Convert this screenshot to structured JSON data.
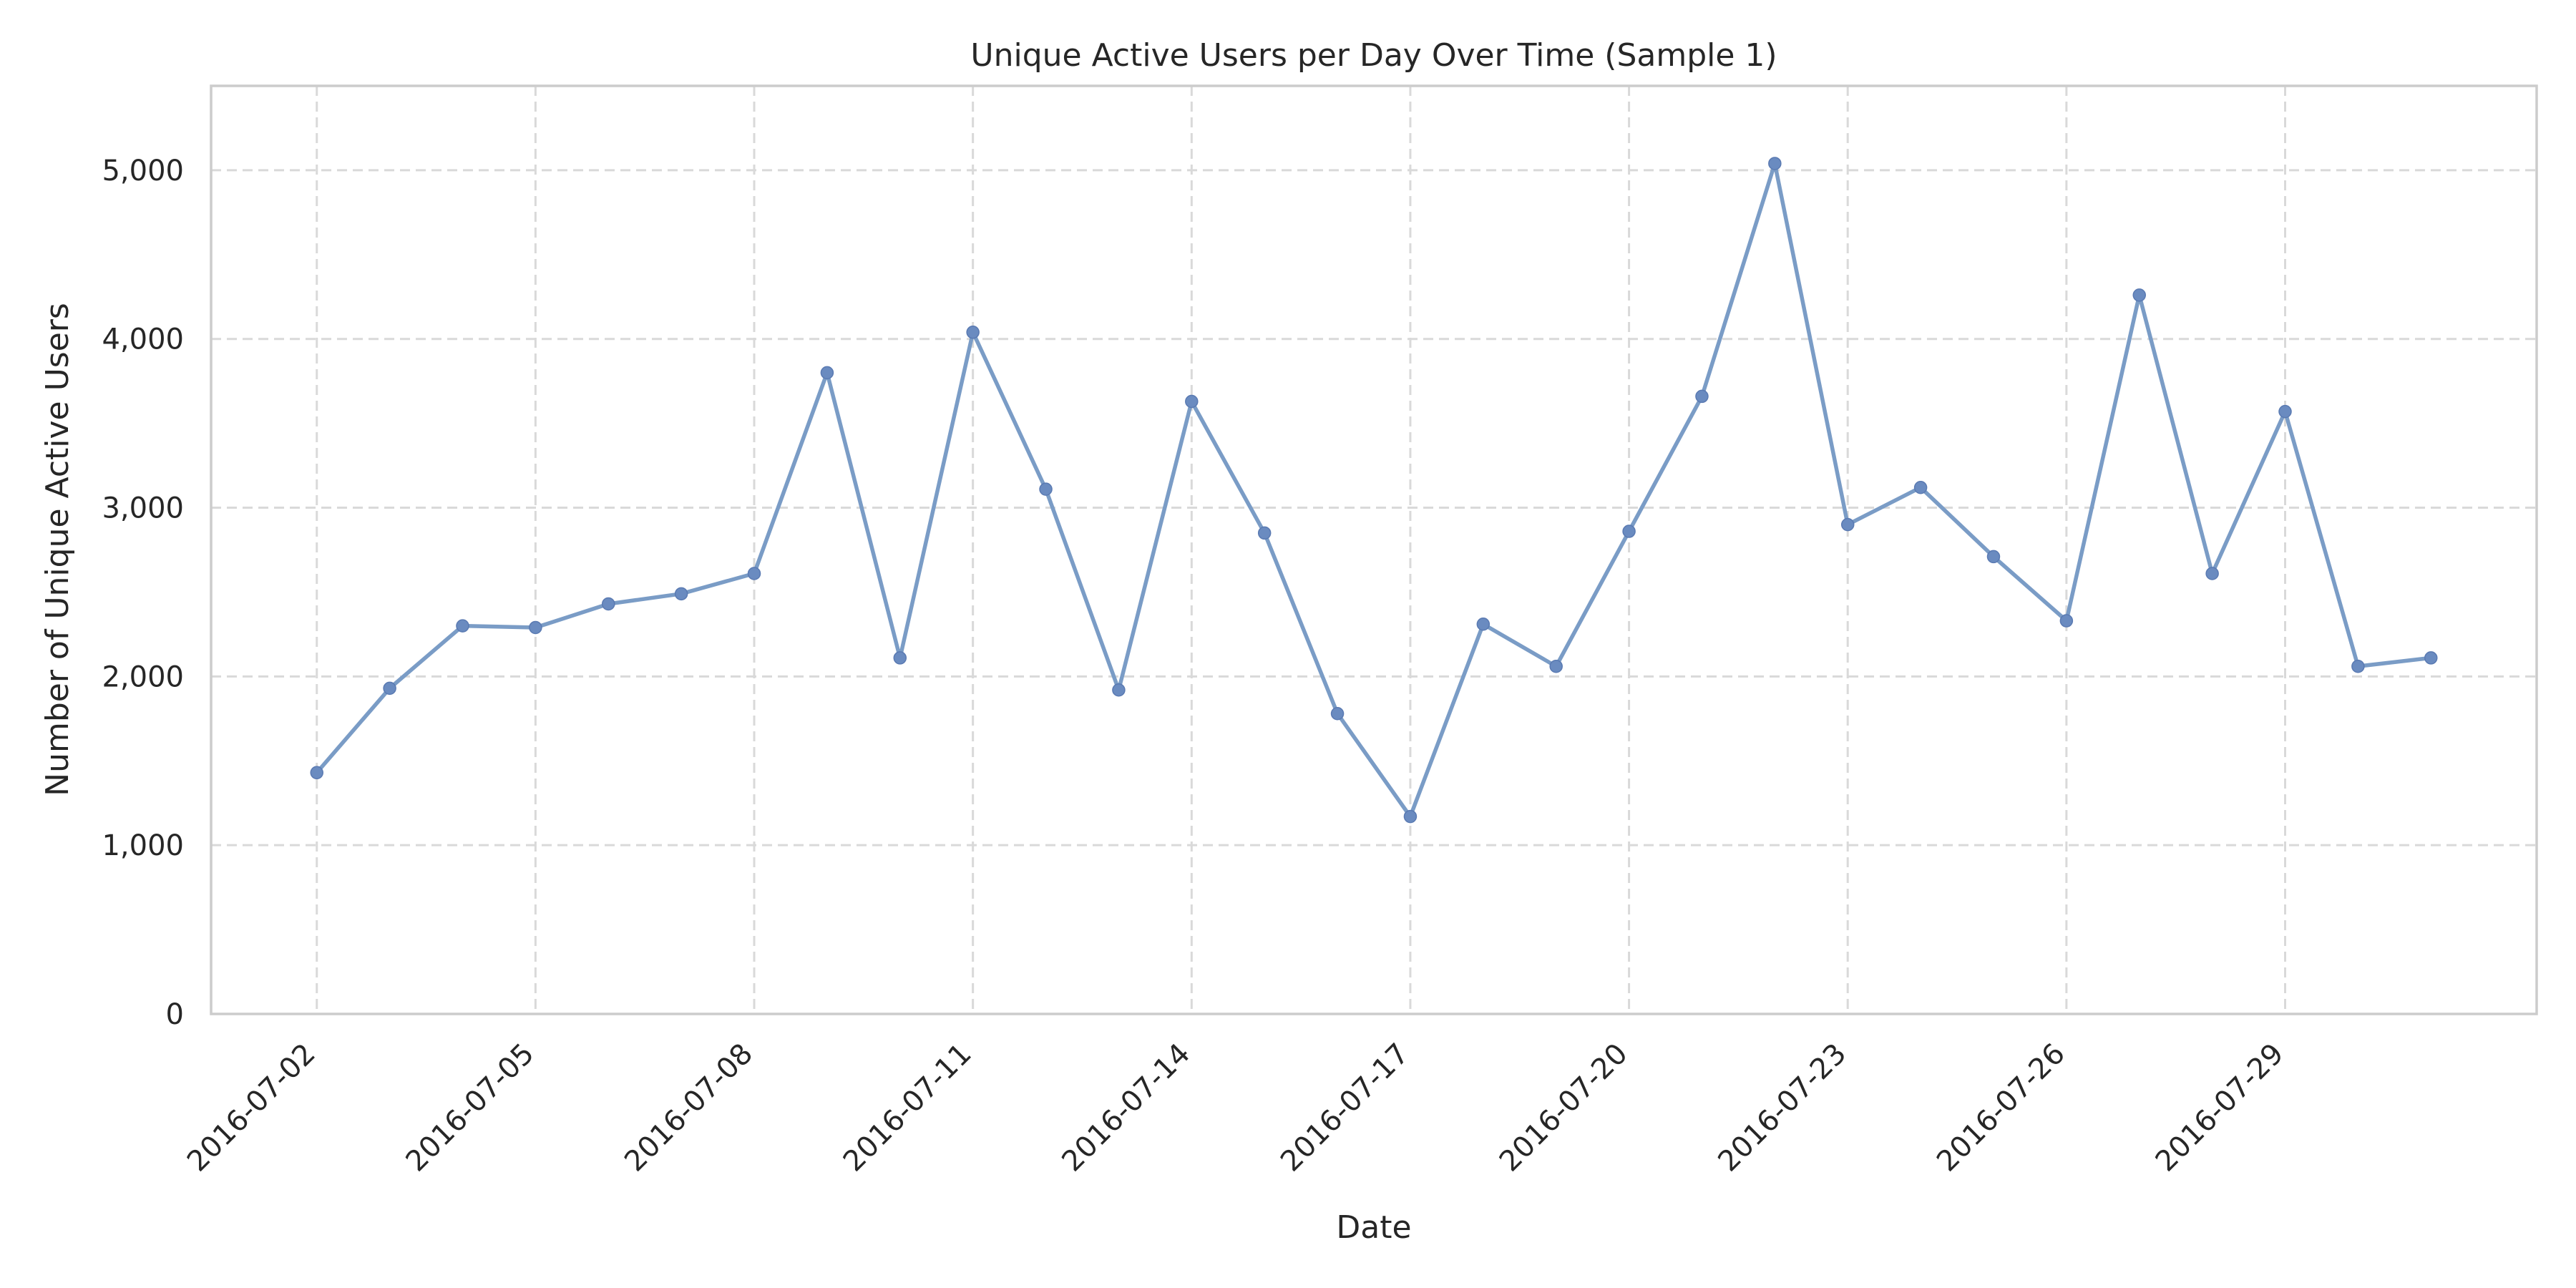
{
  "chart_data": {
    "type": "line",
    "title": "Unique Active Users per Day Over Time (Sample 1)",
    "xlabel": "Date",
    "ylabel": "Number of Unique Active Users",
    "ylim": [
      0,
      5500
    ],
    "grid": true,
    "color": "#7a9cc6",
    "x_tick_labels": [
      "2016-07-02",
      "2016-07-05",
      "2016-07-08",
      "2016-07-11",
      "2016-07-14",
      "2016-07-17",
      "2016-07-20",
      "2016-07-23",
      "2016-07-26",
      "2016-07-29"
    ],
    "y_tick_labels": [
      "0",
      "1,000",
      "2,000",
      "3,000",
      "4,000",
      "5,000"
    ],
    "y_ticks": [
      0,
      1000,
      2000,
      3000,
      4000,
      5000
    ],
    "x": [
      "2016-07-02",
      "2016-07-03",
      "2016-07-04",
      "2016-07-05",
      "2016-07-06",
      "2016-07-07",
      "2016-07-08",
      "2016-07-09",
      "2016-07-10",
      "2016-07-11",
      "2016-07-12",
      "2016-07-13",
      "2016-07-14",
      "2016-07-15",
      "2016-07-16",
      "2016-07-17",
      "2016-07-18",
      "2016-07-19",
      "2016-07-20",
      "2016-07-21",
      "2016-07-22",
      "2016-07-23",
      "2016-07-24",
      "2016-07-25",
      "2016-07-26",
      "2016-07-27",
      "2016-07-28",
      "2016-07-29",
      "2016-07-30",
      "2016-07-31"
    ],
    "series": [
      {
        "values": [
          1430,
          1930,
          2300,
          2290,
          2430,
          2490,
          2610,
          3800,
          2110,
          4040,
          3110,
          1920,
          3630,
          2850,
          1780,
          1170,
          2310,
          2060,
          2860,
          3660,
          5040,
          2900,
          3120,
          2710,
          2330,
          4260,
          2610,
          3570,
          2060,
          2110
        ]
      }
    ]
  }
}
